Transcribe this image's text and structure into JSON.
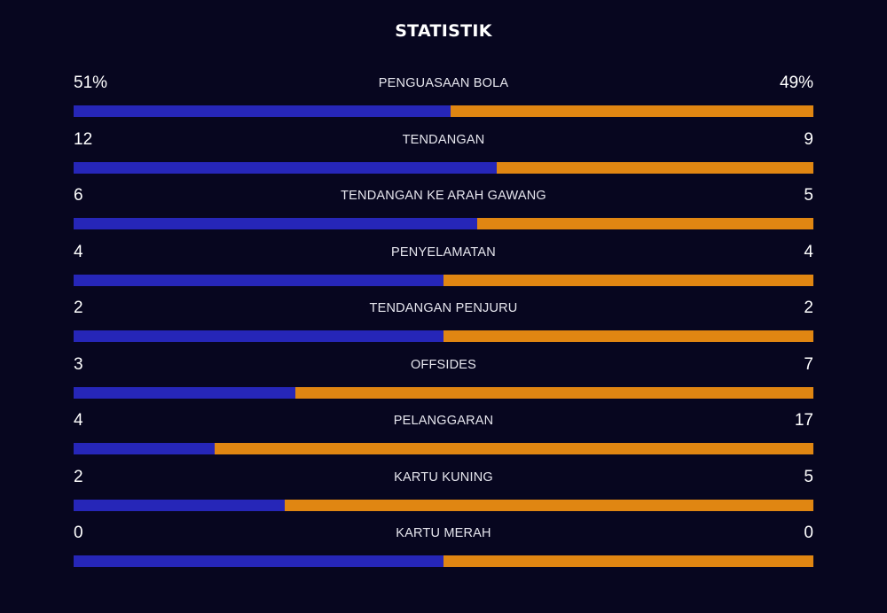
{
  "title": "STATISTIK",
  "colors": {
    "background": "#07061f",
    "home": "#2626b8",
    "away": "#e08612"
  },
  "stats": [
    {
      "label": "PENGUASAAN BOLA",
      "left": "51%",
      "right": "49%",
      "left_value": 51,
      "right_value": 49
    },
    {
      "label": "TENDANGAN",
      "left": "12",
      "right": "9",
      "left_value": 12,
      "right_value": 9
    },
    {
      "label": "TENDANGAN KE ARAH GAWANG",
      "left": "6",
      "right": "5",
      "left_value": 6,
      "right_value": 5
    },
    {
      "label": "PENYELAMATAN",
      "left": "4",
      "right": "4",
      "left_value": 4,
      "right_value": 4
    },
    {
      "label": "TENDANGAN PENJURU",
      "left": "2",
      "right": "2",
      "left_value": 2,
      "right_value": 2
    },
    {
      "label": "OFFSIDES",
      "left": "3",
      "right": "7",
      "left_value": 3,
      "right_value": 7
    },
    {
      "label": "PELANGGARAN",
      "left": "4",
      "right": "17",
      "left_value": 4,
      "right_value": 17
    },
    {
      "label": "KARTU KUNING",
      "left": "2",
      "right": "5",
      "left_value": 2,
      "right_value": 5
    },
    {
      "label": "KARTU MERAH",
      "left": "0",
      "right": "0",
      "left_value": 0,
      "right_value": 0
    }
  ]
}
